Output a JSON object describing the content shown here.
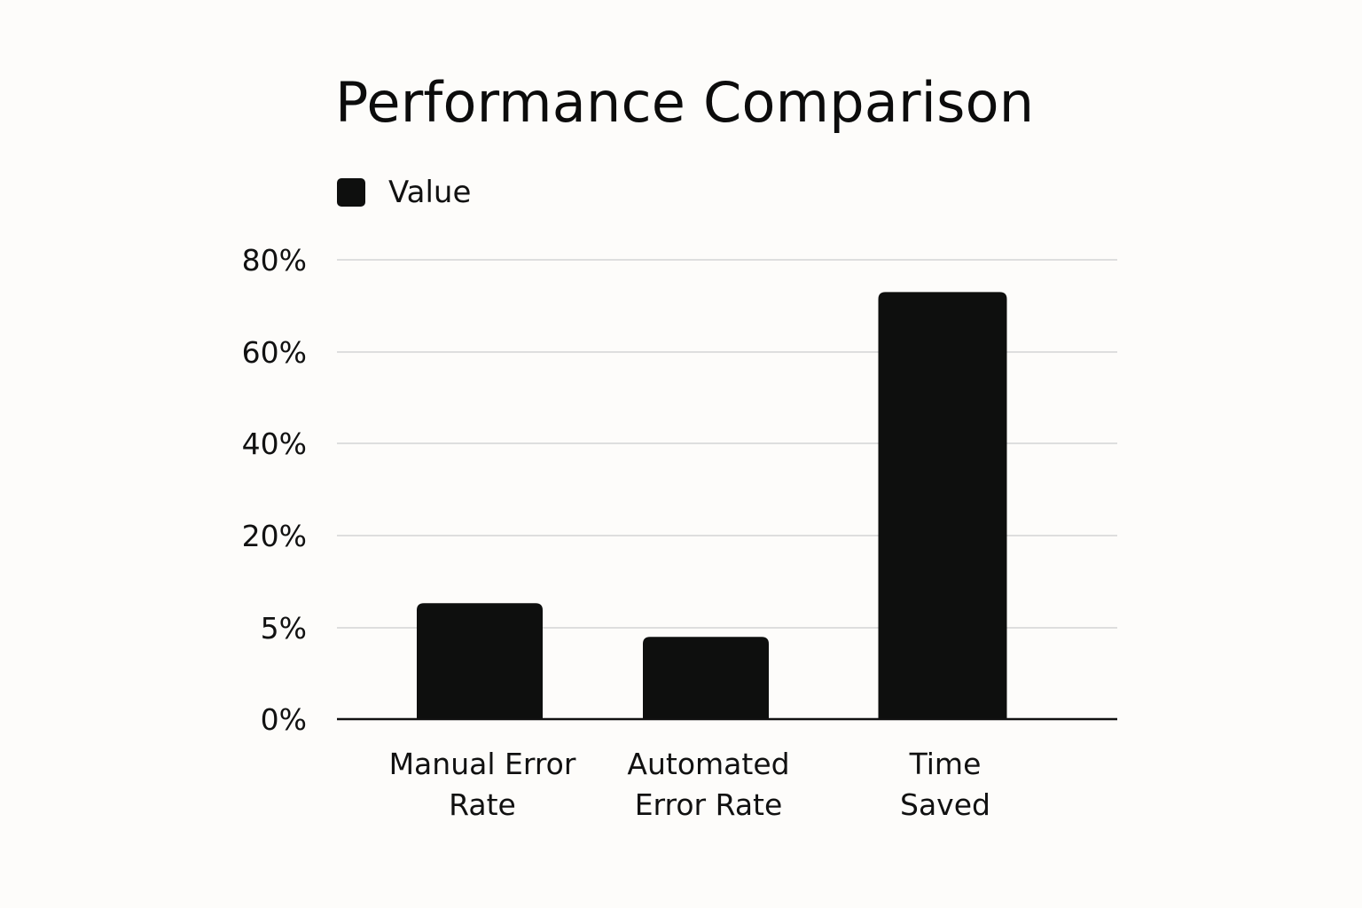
{
  "chart_data": {
    "type": "bar",
    "title": "Performance Comparison",
    "xlabel": "",
    "ylabel": "",
    "categories": [
      [
        "Manual Error",
        "Rate"
      ],
      [
        "Automated",
        "Error Rate"
      ],
      [
        "Time",
        "Saved"
      ]
    ],
    "series": [
      {
        "name": "Value",
        "values": [
          9,
          4.5,
          73
        ]
      }
    ],
    "yticks": [
      0,
      5,
      20,
      40,
      60,
      80
    ],
    "ytick_labels": [
      "0%",
      "5%",
      "20%",
      "40%",
      "60%",
      "80%"
    ],
    "ylim": [
      0,
      80
    ],
    "grid": true,
    "legend_position": "top-left",
    "colors": {
      "bar": "#0e0f0e",
      "grid": "#dedede",
      "axis": "#111111"
    }
  }
}
